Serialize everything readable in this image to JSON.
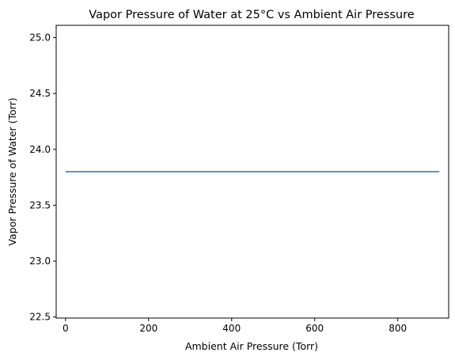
{
  "chart_data": {
    "type": "line",
    "title": "Vapor Pressure of Water at 25°C vs Ambient Air Pressure",
    "xlabel": "Ambient Air Pressure (Torr)",
    "ylabel": "Vapor Pressure of Water (Torr)",
    "xlim": [
      -22.5,
      922.5
    ],
    "ylim": [
      22.49,
      25.11
    ],
    "x_ticks": [
      0,
      200,
      400,
      600,
      800
    ],
    "x_tick_labels": [
      "0",
      "200",
      "400",
      "600",
      "800"
    ],
    "y_ticks": [
      22.5,
      23.0,
      23.5,
      24.0,
      24.5,
      25.0
    ],
    "y_tick_labels": [
      "22.5",
      "23.0",
      "23.5",
      "24.0",
      "24.5",
      "25.0"
    ],
    "grid": false,
    "series": [
      {
        "color": "#1f77b4",
        "x": [
          0,
          100,
          200,
          300,
          400,
          500,
          600,
          700,
          800,
          900
        ],
        "y": [
          23.8,
          23.8,
          23.8,
          23.8,
          23.8,
          23.8,
          23.8,
          23.8,
          23.8,
          23.8
        ]
      }
    ]
  }
}
